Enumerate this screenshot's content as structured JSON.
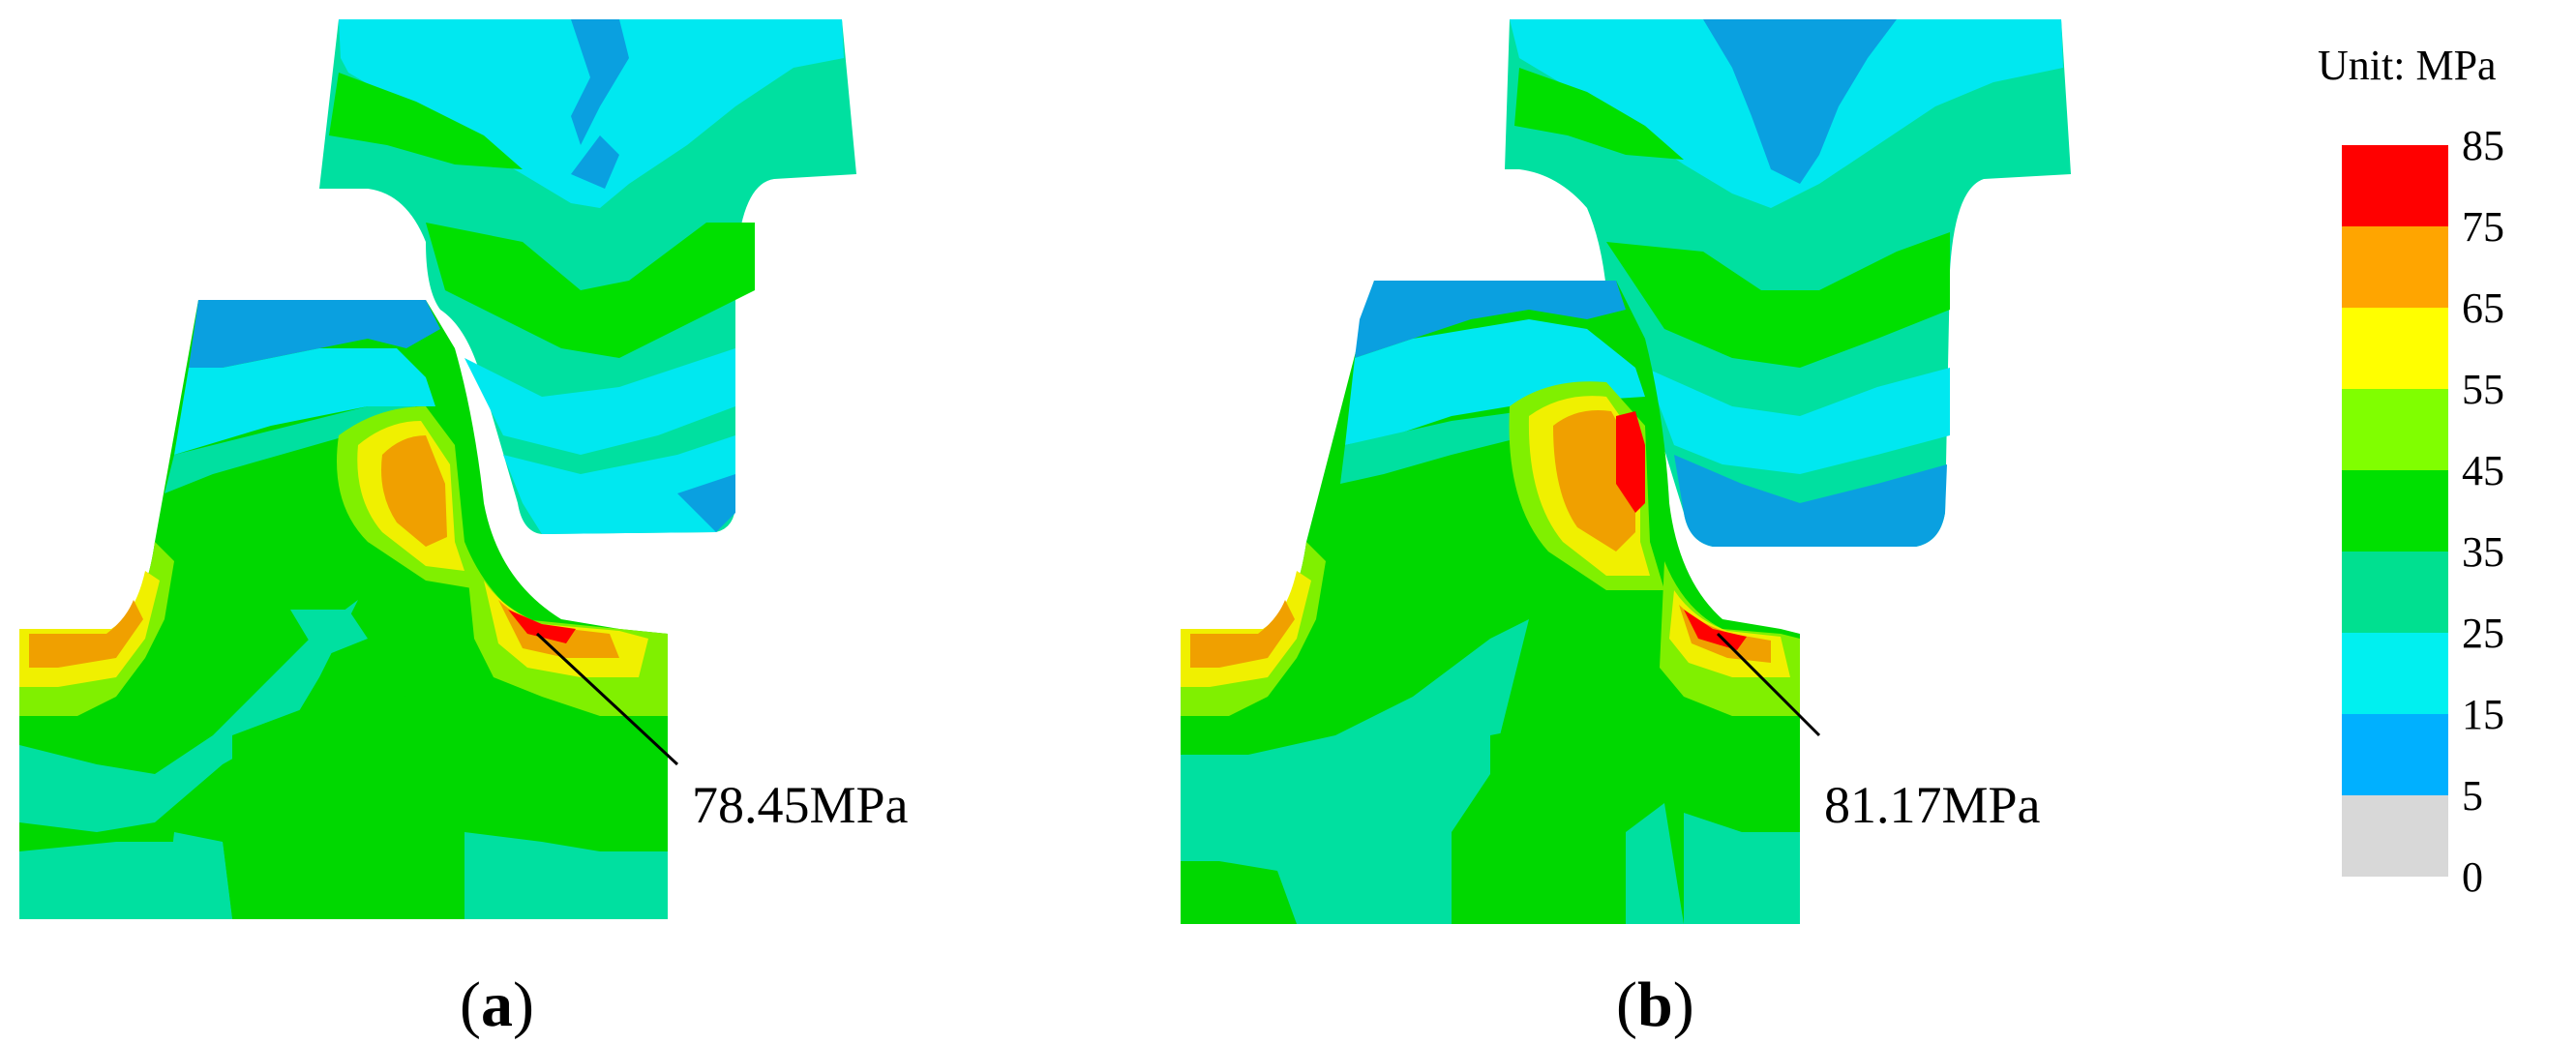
{
  "panels": [
    {
      "letter": "a",
      "max_stress_label": "78.45MPa"
    },
    {
      "letter": "b",
      "max_stress_label": "81.17MPa"
    }
  ],
  "legend": {
    "title": "Unit: MPa",
    "levels": [
      "85",
      "75",
      "65",
      "55",
      "45",
      "35",
      "25",
      "15",
      "5",
      "0"
    ],
    "colors": [
      "#ff0000",
      "#ffa500",
      "#ffff00",
      "#80ff00",
      "#00e000",
      "#00e090",
      "#00f0f0",
      "#00b0ff",
      "#d8d8d8"
    ]
  },
  "palette": {
    "blue": "#0aa0e0",
    "cyan": "#00e0f0",
    "teal": "#20e0a0",
    "green": "#00d800",
    "lime": "#80f000",
    "yellow": "#f0f000",
    "orange": "#f0a000",
    "red": "#ff0000"
  }
}
